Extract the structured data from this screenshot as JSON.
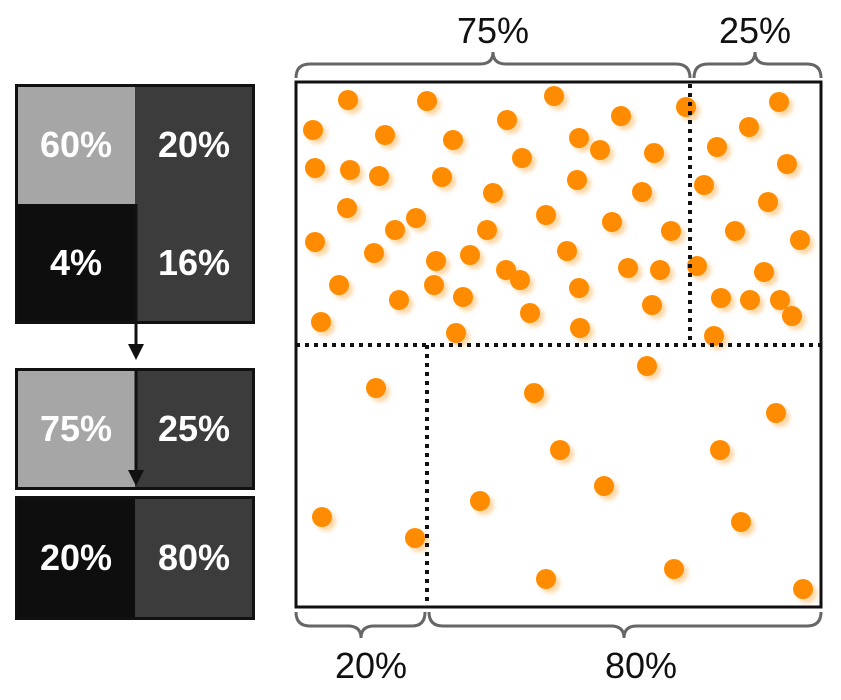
{
  "top_matrix": {
    "cells": [
      "60%",
      "20%",
      "4%",
      "16%"
    ],
    "colors": [
      "#a6a6a6",
      "#3c3c3c",
      "#0e0e0e",
      "#3c3c3c"
    ]
  },
  "upper_split": {
    "cells": [
      "75%",
      "25%"
    ],
    "colors": [
      "#a6a6a6",
      "#3c3c3c"
    ]
  },
  "lower_split": {
    "cells": [
      "20%",
      "80%"
    ],
    "colors": [
      "#0e0e0e",
      "#3c3c3c"
    ]
  },
  "brace_labels": {
    "top_left": "75%",
    "top_right": "25%",
    "bottom_left": "20%",
    "bottom_right": "80%"
  },
  "colors": {
    "dot": "#ff8c00",
    "dot_shadow": "#d9d9d9",
    "frame": "#111111",
    "brace": "#666666"
  },
  "dots": {
    "upper_left_region": 46,
    "upper_right_region": 15,
    "lower_left_region": 3,
    "lower_right_region": 11
  }
}
